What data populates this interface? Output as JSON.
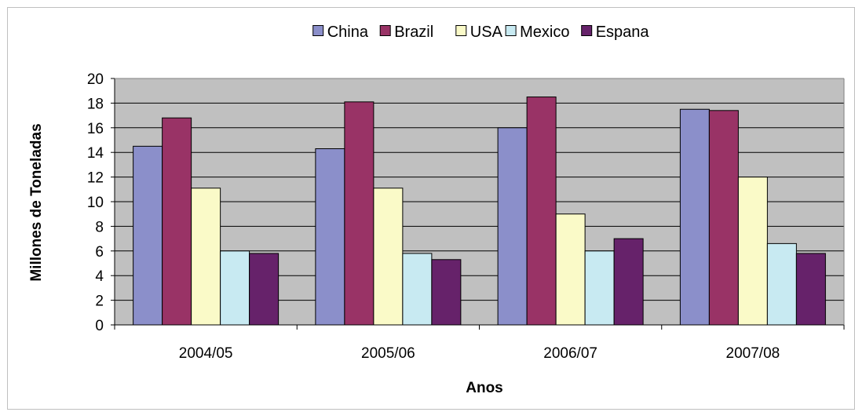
{
  "chart_data": {
    "type": "bar",
    "title": "",
    "xlabel": "Anos",
    "ylabel": "Millones de Toneladas",
    "categories": [
      "2004/05",
      "2005/06",
      "2006/07",
      "2007/08"
    ],
    "ylim": [
      0,
      20
    ],
    "yticks": [
      "0",
      "2",
      "4",
      "6",
      "8",
      "10",
      "12",
      "14",
      "16",
      "18",
      "20"
    ],
    "grid": true,
    "legend_position": "top",
    "plot_background": "#c0c0c0",
    "series": [
      {
        "name": "China",
        "color": "#8b8fca",
        "values": [
          14.5,
          14.3,
          16.0,
          17.5
        ]
      },
      {
        "name": "Brazil",
        "color": "#993366",
        "values": [
          16.8,
          18.1,
          18.5,
          17.4
        ]
      },
      {
        "name": "USA",
        "color": "#fafac8",
        "values": [
          11.1,
          11.1,
          9.0,
          12.0
        ]
      },
      {
        "name": "Mexico",
        "color": "#c8eaf2",
        "values": [
          6.0,
          5.8,
          6.0,
          6.6
        ]
      },
      {
        "name": "Espana",
        "color": "#66226a",
        "values": [
          5.8,
          5.3,
          7.0,
          5.8
        ]
      }
    ]
  }
}
